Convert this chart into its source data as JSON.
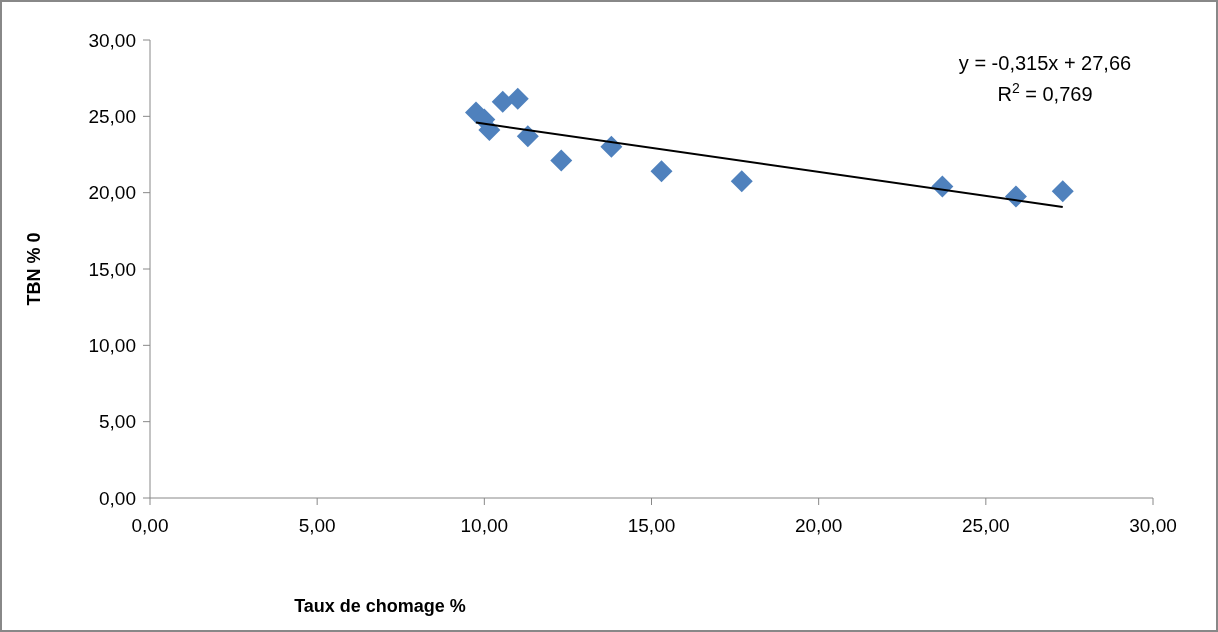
{
  "chart_data": {
    "type": "scatter",
    "xlabel": "Taux de chomage %",
    "ylabel": "TBN % 0",
    "grid": false,
    "xlim": [
      0,
      30
    ],
    "ylim": [
      0,
      30
    ],
    "xticks": [
      {
        "value": 0,
        "label": "0,00"
      },
      {
        "value": 5,
        "label": "5,00"
      },
      {
        "value": 10,
        "label": "10,00"
      },
      {
        "value": 15,
        "label": "15,00"
      },
      {
        "value": 20,
        "label": "20,00"
      },
      {
        "value": 25,
        "label": "25,00"
      },
      {
        "value": 30,
        "label": "30,00"
      }
    ],
    "yticks": [
      {
        "value": 0,
        "label": "0,00"
      },
      {
        "value": 5,
        "label": "5,00"
      },
      {
        "value": 10,
        "label": "10,00"
      },
      {
        "value": 15,
        "label": "15,00"
      },
      {
        "value": 20,
        "label": "20,00"
      },
      {
        "value": 25,
        "label": "25,00"
      },
      {
        "value": 30,
        "label": "30,00"
      }
    ],
    "series": [
      {
        "marker": "diamond",
        "color": "#4f81bd",
        "x": [
          9.75,
          10.0,
          10.15,
          10.55,
          11.0,
          11.3,
          12.3,
          13.8,
          15.3,
          17.7,
          23.7,
          25.9,
          27.3
        ],
        "values": [
          25.25,
          24.8,
          24.1,
          25.95,
          26.15,
          23.7,
          22.1,
          23.0,
          21.4,
          20.75,
          20.4,
          19.75,
          20.1
        ]
      },
      {
        "type": "line",
        "color": "#000000",
        "x": [
          9.75,
          27.3
        ],
        "values": [
          24.59,
          19.06
        ]
      }
    ],
    "annotations": [
      "y = -0,315x + 27,66",
      "R$^{2}$ = 0,769"
    ]
  }
}
